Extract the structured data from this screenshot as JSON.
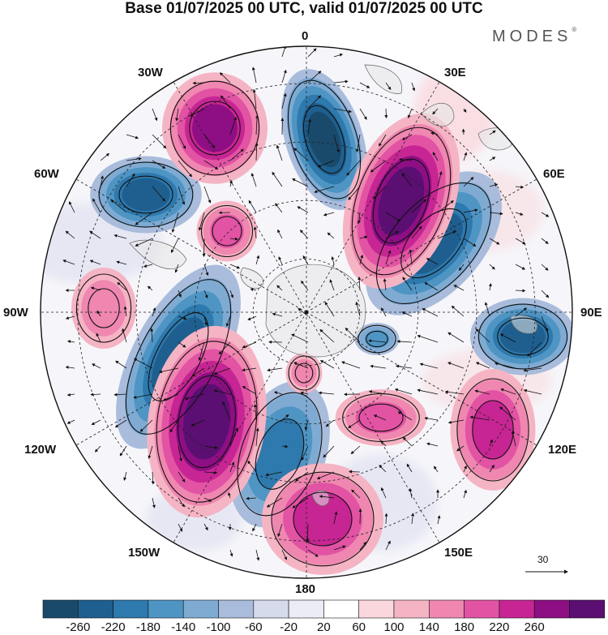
{
  "title": "Base 01/07/2025 00 UTC, valid 01/07/2025 00 UTC",
  "brand": "MODES",
  "brand_mark": "®",
  "longitude_labels": {
    "n0": "0",
    "n30e": "30E",
    "n60e": "60E",
    "n90e": "90E",
    "n120e": "120E",
    "n150e": "150E",
    "n180": "180",
    "n150w": "150W",
    "n120w": "120W",
    "n90w": "90W",
    "n60w": "60W",
    "n30w": "30W"
  },
  "vector_reference": {
    "value": "30"
  },
  "colorbar": {
    "labels": [
      "-260",
      "-220",
      "-180",
      "-140",
      "-100",
      "-60",
      "-20",
      "20",
      "60",
      "100",
      "140",
      "180",
      "220",
      "260"
    ],
    "colors": [
      "#1a4a6b",
      "#1f5f8f",
      "#2e79ad",
      "#4f95c4",
      "#7fabd3",
      "#a9bcdc",
      "#d6dbec",
      "#ececf6",
      "#ffffff",
      "#f9d7dc",
      "#f5b4c4",
      "#ef87b0",
      "#e253a4",
      "#c72593",
      "#8e0e84",
      "#5b0f72"
    ]
  },
  "anomaly_centers": [
    {
      "sign": "neg",
      "level": 5
    },
    {
      "sign": "neg",
      "level": 4
    },
    {
      "sign": "neg",
      "level": 4
    },
    {
      "sign": "neg",
      "level": 4
    },
    {
      "sign": "neg",
      "level": 3
    },
    {
      "sign": "neg",
      "level": 4
    },
    {
      "sign": "neg",
      "level": 2
    },
    {
      "sign": "pos",
      "level": 4
    },
    {
      "sign": "pos",
      "level": 5
    },
    {
      "sign": "pos",
      "level": 5
    },
    {
      "sign": "pos",
      "level": 3
    },
    {
      "sign": "pos",
      "level": 3
    },
    {
      "sign": "pos",
      "level": 2
    },
    {
      "sign": "pos",
      "level": 2
    },
    {
      "sign": "pos",
      "level": 1
    },
    {
      "sign": "pos",
      "level": 1
    }
  ]
}
